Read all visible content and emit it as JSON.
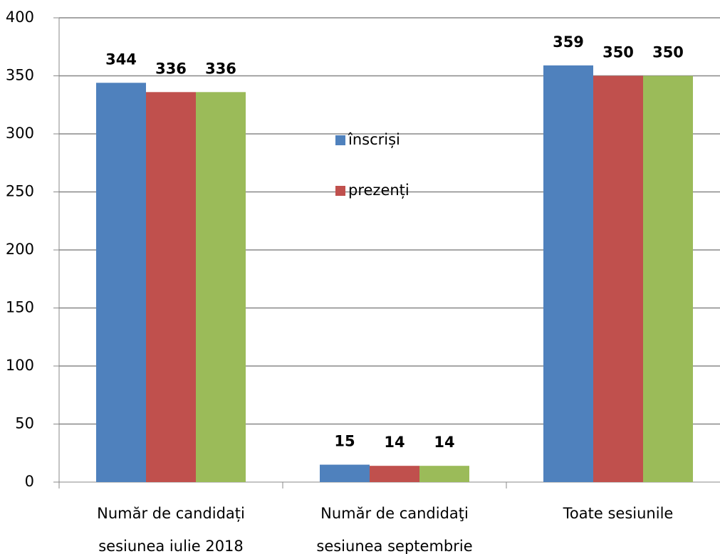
{
  "chart_data": {
    "type": "bar",
    "categories": [
      [
        "Număr de candidați",
        "sesiunea iulie 2018"
      ],
      [
        "Număr de candidaţi",
        "sesiunea septembrie"
      ],
      [
        "Toate sesiunile"
      ]
    ],
    "series": [
      {
        "name": "înscriși",
        "color": "#4f81bd",
        "values": [
          344,
          15,
          359
        ]
      },
      {
        "name": "prezenți",
        "color": "#c0504d",
        "values": [
          336,
          14,
          350
        ]
      },
      {
        "color": "#9bbb59",
        "values": [
          336,
          14,
          350
        ]
      }
    ],
    "ylim": [
      0,
      400
    ],
    "yticks": [
      0,
      50,
      100,
      150,
      200,
      250,
      300,
      350,
      400
    ],
    "grid": true
  }
}
